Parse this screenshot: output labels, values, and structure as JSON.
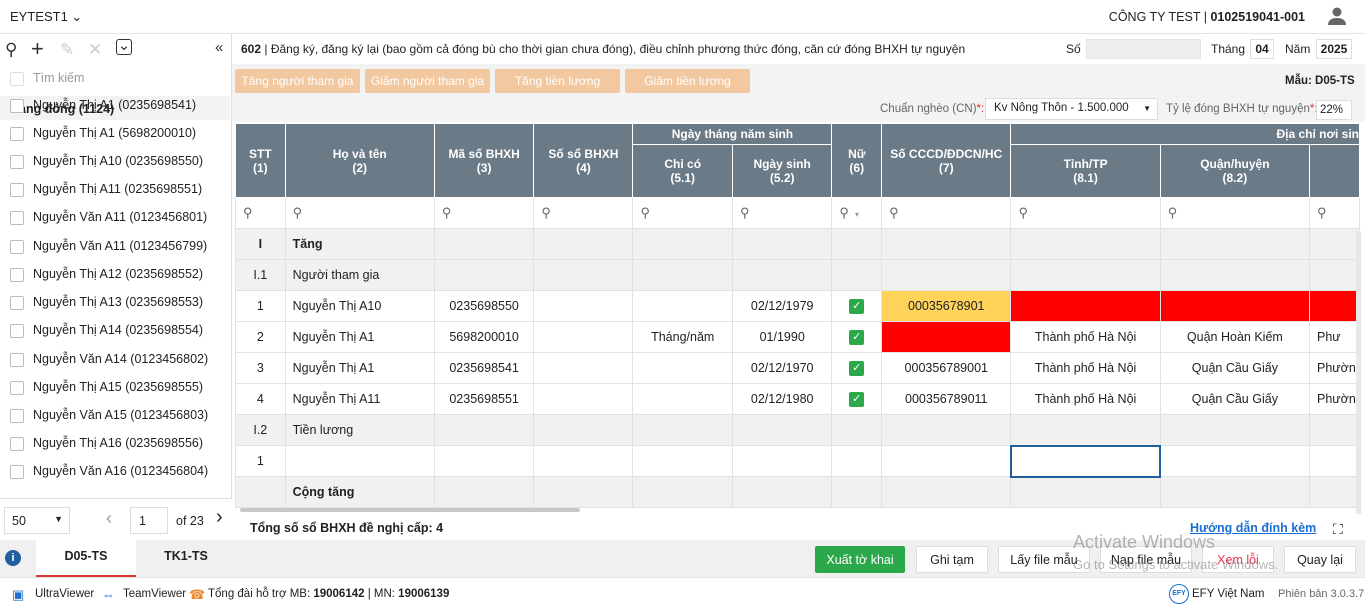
{
  "header": {
    "app_name": "EYTEST1",
    "company": "CÔNG TY TEST | ",
    "tax_code": "0102519041-001"
  },
  "left": {
    "search_placeholder": "Tìm kiếm",
    "group_label": "Đang đóng (1124)",
    "people": [
      "Nguyễn Thị A1 (0235698541)",
      "Nguyễn Thị A1 (5698200010)",
      "Nguyễn Thị A10 (0235698550)",
      "Nguyễn Thị A11 (0235698551)",
      "Nguyễn Văn A11 (0123456801)",
      "Nguyễn Văn A11 (0123456799)",
      "Nguyễn Thị A12 (0235698552)",
      "Nguyễn Thị A13 (0235698553)",
      "Nguyễn Thị A14 (0235698554)",
      "Nguyễn Văn A14 (0123456802)",
      "Nguyễn Thị A15 (0235698555)",
      "Nguyễn Văn A15 (0123456803)",
      "Nguyễn Thị A16 (0235698556)",
      "Nguyễn Văn A16 (0123456804)"
    ],
    "page_size": "50",
    "page": "1",
    "of_label": "of",
    "total_pages": "23"
  },
  "tabs": {
    "d05": "D05-TS",
    "tk1": "TK1-TS"
  },
  "form": {
    "code": "602",
    "title": " | Đăng ký, đăng ký lại (bao gồm cả đóng bù cho thời gian chưa đóng), điều chỉnh phương thức đóng, căn cứ đóng BHXH tự nguyện",
    "so_label": "Số",
    "thang_label": "Tháng",
    "thang": "04",
    "nam_label": "Năm",
    "nam": "2025",
    "mau": "Mẫu: D05-TS",
    "btn_tang_ntg": "Tăng người tham gia",
    "btn_giam_ntg": "Giảm người tham gia",
    "btn_tang_tl": "Tăng tiền lương",
    "btn_giam_tl": "Giảm tiền lương",
    "chuan_ngheo_label": "Chuẩn nghèo (CN)",
    "chuan_ngheo": "Kv Nông Thôn - 1.500.000",
    "ty_le_label": "Tỷ lệ đóng BHXH tự nguyện",
    "ty_le": "22%",
    "star": "*:"
  },
  "table": {
    "h": {
      "stt": "STT",
      "stt_n": "(1)",
      "hoten": "Họ và tên",
      "hoten_n": "(2)",
      "ma": "Mã số BHXH",
      "ma_n": "(3)",
      "so": "Số sổ BHXH",
      "so_n": "(4)",
      "ngay": "Ngày tháng năm sinh",
      "chico": "Chỉ có",
      "chico_n": "(5.1)",
      "ngaysinh": "Ngày sinh",
      "ngaysinh_n": "(5.2)",
      "nu": "Nữ",
      "nu_n": "(6)",
      "cccd": "Số CCCD/ĐDCN/HC",
      "cccd_n": "(7)",
      "diachi": "Địa chỉ nơi sin",
      "tinh": "Tỉnh/TP",
      "tinh_n": "(8.1)",
      "quan": "Quận/huyện",
      "quan_n": "(8.2)"
    },
    "sec_I": "I",
    "sec_I_label": "Tăng",
    "sec_I1": "I.1",
    "sec_I1_label": "Người tham gia",
    "sec_I2": "I.2",
    "sec_I2_label": "Tiền lương",
    "total_label": "Cộng tăng",
    "row_1": "1",
    "rows": [
      {
        "stt": "1",
        "name": "Nguyễn Thị A10",
        "ma": "0235698550",
        "chico": "",
        "dob": "02/12/1979",
        "cccd": "00035678901",
        "tinh": "",
        "quan": "",
        "x": ""
      },
      {
        "stt": "2",
        "name": "Nguyễn Thị A1",
        "ma": "5698200010",
        "chico": "Tháng/năm",
        "dob": "01/1990",
        "cccd": "",
        "tinh": "Thành phố Hà Nội",
        "quan": "Quận Hoàn Kiếm",
        "x": "Phư"
      },
      {
        "stt": "3",
        "name": "Nguyễn Thị A1",
        "ma": "0235698541",
        "chico": "",
        "dob": "02/12/1970",
        "cccd": "000356789001",
        "tinh": "Thành phố Hà Nội",
        "quan": "Quận Cầu Giấy",
        "x": "Phườn"
      },
      {
        "stt": "4",
        "name": "Nguyễn Thị A11",
        "ma": "0235698551",
        "chico": "",
        "dob": "02/12/1980",
        "cccd": "000356789011",
        "tinh": "Thành phố Hà Nội",
        "quan": "Quận Cầu Giấy",
        "x": "Phườn"
      }
    ]
  },
  "summary": {
    "label": "Tổng số sổ BHXH đề nghị cấp: 4",
    "guide": "Hướng dẫn đính kèm"
  },
  "actions": {
    "xuat": "Xuất tờ khai",
    "ghi": "Ghi tạm",
    "lay": "Lấy file mẫu",
    "nap": "Nạp file mẫu",
    "xem": "Xem lỗi",
    "quay": "Quay lại"
  },
  "watermark": {
    "line1": "Activate Windows",
    "line2": "Go to Settings to activate Windows."
  },
  "footer": {
    "ultra": "UltraViewer",
    "team": "TeamViewer",
    "hotline": "Tổng đài hỗ trợ MB: ",
    "mb": "19006142",
    "sep": " | MN: ",
    "mn": "19006139",
    "efy": "EFY Việt Nam",
    "version": "Phiên bản 3.0.3.7"
  }
}
